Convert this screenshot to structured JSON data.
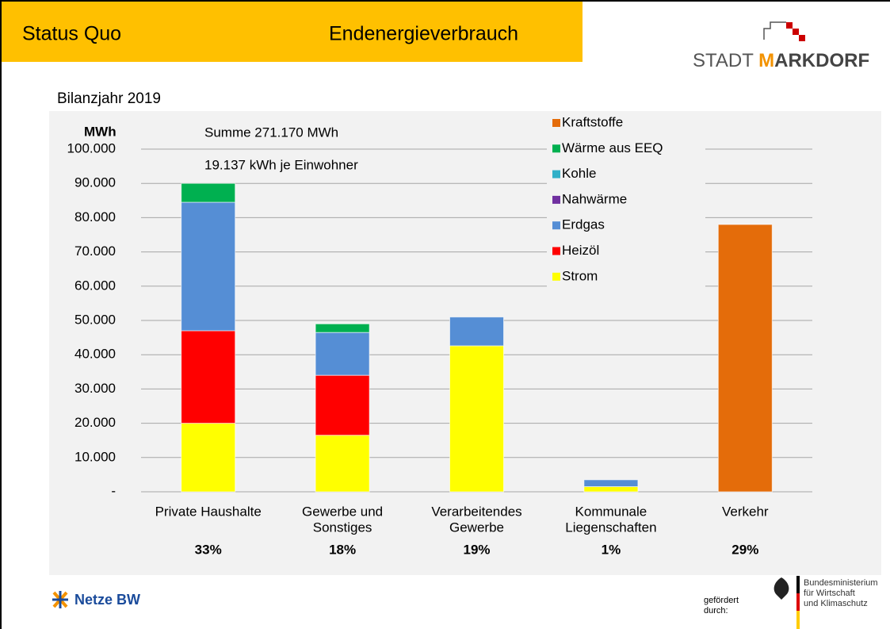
{
  "header": {
    "section": "Status Quo",
    "topic": "Endenergieverbrauch"
  },
  "logo": {
    "word": "STADT",
    "initial": "M",
    "rest": "ARKDORF"
  },
  "chart_data": {
    "type": "stacked_bar",
    "title": "Bilanzjahr 2019",
    "y_label": "MWh",
    "annotations": [
      "Summe 271.170 MWh",
      "19.137 kWh je Einwohner"
    ],
    "categories": [
      [
        "Private Haushalte"
      ],
      [
        "Gewerbe und",
        "Sonstiges"
      ],
      [
        "Verarbeitendes",
        "Gewerbe"
      ],
      [
        "Kommunale",
        "Liegenschaften"
      ],
      [
        "Verkehr"
      ]
    ],
    "shares": [
      {
        "value": 33,
        "label": "33%"
      },
      {
        "value": 18,
        "label": "18%"
      },
      {
        "value": 19,
        "label": "19%"
      },
      {
        "value": 1,
        "label": "1%"
      },
      {
        "value": 29,
        "label": "29%"
      }
    ],
    "series": [
      {
        "name": "Strom",
        "color": "#FFFF00",
        "values": [
          20000,
          16500,
          42600,
          1500,
          0
        ]
      },
      {
        "name": "Heizöl",
        "color": "#FF0000",
        "values": [
          27000,
          17500,
          0,
          0,
          0
        ]
      },
      {
        "name": "Erdgas",
        "color": "#558ED5",
        "values": [
          37500,
          12500,
          8400,
          2000,
          0
        ]
      },
      {
        "name": "Nahwärme",
        "color": "#7030A0",
        "values": [
          0,
          0,
          0,
          0,
          0
        ]
      },
      {
        "name": "Kohle",
        "color": "#31B0C8",
        "values": [
          0,
          0,
          0,
          0,
          0
        ]
      },
      {
        "name": "Wärme aus EEQ",
        "color": "#00B050",
        "values": [
          5500,
          2500,
          0,
          0,
          0
        ]
      },
      {
        "name": "Kraftstoffe",
        "color": "#E46C0A",
        "values": [
          0,
          0,
          0,
          0,
          78000
        ]
      }
    ],
    "ylim": [
      0,
      100000
    ],
    "yticks": [
      {
        "value": 0,
        "label": "-"
      },
      {
        "value": 10000,
        "label": "10.000"
      },
      {
        "value": 20000,
        "label": "20.000"
      },
      {
        "value": 30000,
        "label": "30.000"
      },
      {
        "value": 40000,
        "label": "40.000"
      },
      {
        "value": 50000,
        "label": "50.000"
      },
      {
        "value": 60000,
        "label": "60.000"
      },
      {
        "value": 70000,
        "label": "70.000"
      },
      {
        "value": 80000,
        "label": "80.000"
      },
      {
        "value": 90000,
        "label": "90.000"
      },
      {
        "value": 100000,
        "label": "100.000"
      }
    ],
    "grid": true,
    "legend": "top-right"
  },
  "footer": {
    "partner": "Netze BW",
    "funded": [
      "gefördert",
      "durch:"
    ],
    "ministry": [
      "Bundesministerium",
      "für Wirtschaft",
      "und Klimaschutz"
    ]
  }
}
